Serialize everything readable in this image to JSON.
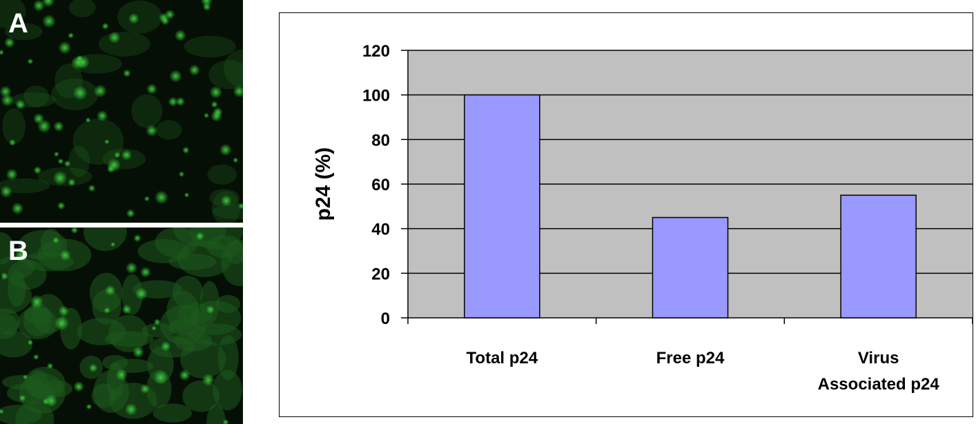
{
  "panels": [
    {
      "letter": "A",
      "description_color": "#1f6e1f"
    },
    {
      "letter": "B",
      "description_color": "#2f8a2f"
    }
  ],
  "colors": {
    "plot_background": "#c0c0c0",
    "bar_fill": "#9999ff",
    "bar_stroke": "#000000",
    "gridline": "#000000",
    "micrograph_background": "#050f05",
    "fluorescence": "#3fd13f"
  },
  "chart_data": {
    "type": "bar",
    "categories": [
      [
        "Total p24"
      ],
      [
        "Free p24"
      ],
      [
        "Virus",
        "Associated p24"
      ]
    ],
    "values": [
      100,
      45,
      55
    ],
    "title": "",
    "xlabel": "",
    "ylabel": "p24 (%)",
    "ylim": [
      0,
      120
    ],
    "yticks": [
      0,
      20,
      40,
      60,
      80,
      100,
      120
    ],
    "grid": true,
    "legend": "none"
  }
}
